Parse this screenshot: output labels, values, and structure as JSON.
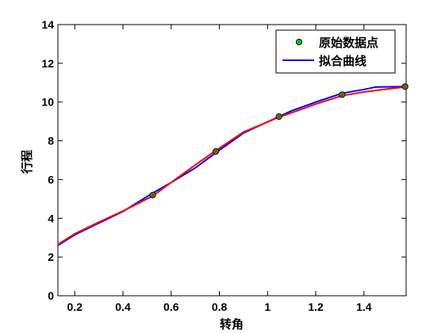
{
  "chart_data": {
    "type": "line",
    "xlabel": "转角",
    "ylabel": "行程",
    "xlim": [
      0.13,
      1.575
    ],
    "ylim": [
      0,
      14
    ],
    "xticks": [
      "0.2",
      "0.4",
      "0.6",
      "0.8",
      "1",
      "1.2",
      "1.4"
    ],
    "xtick_values": [
      0.2,
      0.4,
      0.6,
      0.8,
      1.0,
      1.2,
      1.4
    ],
    "yticks": [
      "0",
      "2",
      "4",
      "6",
      "8",
      "10",
      "12",
      "14"
    ],
    "ytick_values": [
      0,
      2,
      4,
      6,
      8,
      10,
      12,
      14
    ],
    "grid": false,
    "legend_position": "top-right",
    "series": [
      {
        "name": "原始数据点",
        "kind": "scatter",
        "color": "#00cc00",
        "x": [
          0.5236,
          0.7854,
          1.0472,
          1.309,
          1.5708
        ],
        "y": [
          5.2,
          7.45,
          9.25,
          10.38,
          10.8
        ]
      },
      {
        "name": "拟合曲线",
        "kind": "line",
        "color": "#0000ff",
        "x": [
          0.13,
          0.2,
          0.3,
          0.4,
          0.5236,
          0.6,
          0.7,
          0.7854,
          0.9,
          1.0472,
          1.1,
          1.2,
          1.309,
          1.4,
          1.45,
          1.5708
        ],
        "y": [
          2.6,
          3.15,
          3.75,
          4.35,
          5.3,
          5.85,
          6.6,
          7.38,
          8.4,
          9.25,
          9.55,
          10.0,
          10.45,
          10.65,
          10.78,
          10.8
        ]
      },
      {
        "kind": "line",
        "color": "#ff0000",
        "x": [
          0.13,
          0.2,
          0.3,
          0.4,
          0.5236,
          0.6,
          0.7,
          0.7854,
          0.9,
          1.0472,
          1.1,
          1.2,
          1.309,
          1.4,
          1.5,
          1.5708
        ],
        "y": [
          2.65,
          3.2,
          3.8,
          4.37,
          5.15,
          5.85,
          6.75,
          7.5,
          8.45,
          9.22,
          9.45,
          9.9,
          10.33,
          10.52,
          10.68,
          10.78
        ]
      }
    ]
  }
}
